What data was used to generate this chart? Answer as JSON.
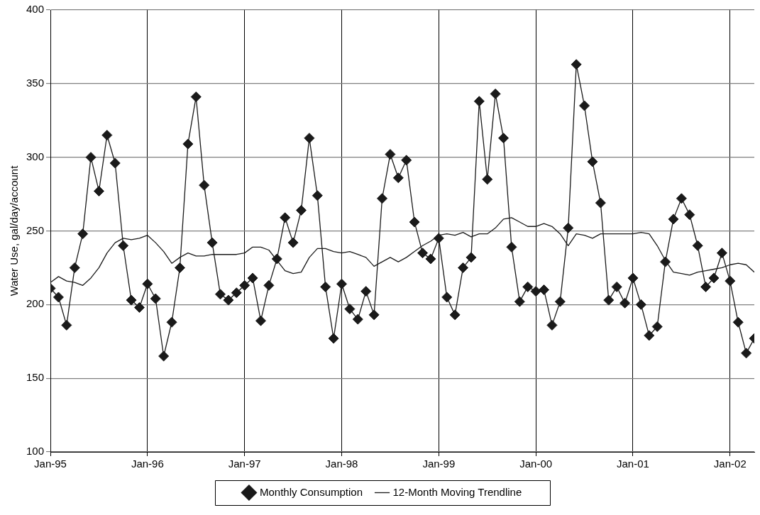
{
  "chart_data": {
    "type": "line",
    "ylabel": "Water Use, gal/day/account",
    "x": [
      "1995-01",
      "1995-02",
      "1995-03",
      "1995-04",
      "1995-05",
      "1995-06",
      "1995-07",
      "1995-08",
      "1995-09",
      "1995-10",
      "1995-11",
      "1995-12",
      "1996-01",
      "1996-02",
      "1996-03",
      "1996-04",
      "1996-05",
      "1996-06",
      "1996-07",
      "1996-08",
      "1996-09",
      "1996-10",
      "1996-11",
      "1996-12",
      "1997-01",
      "1997-02",
      "1997-03",
      "1997-04",
      "1997-05",
      "1997-06",
      "1997-07",
      "1997-08",
      "1997-09",
      "1997-10",
      "1997-11",
      "1997-12",
      "1998-01",
      "1998-02",
      "1998-03",
      "1998-04",
      "1998-05",
      "1998-06",
      "1998-07",
      "1998-08",
      "1998-09",
      "1998-10",
      "1998-11",
      "1998-12",
      "1999-01",
      "1999-02",
      "1999-03",
      "1999-04",
      "1999-05",
      "1999-06",
      "1999-07",
      "1999-08",
      "1999-09",
      "1999-10",
      "1999-11",
      "1999-12",
      "2000-01",
      "2000-02",
      "2000-03",
      "2000-04",
      "2000-05",
      "2000-06",
      "2000-07",
      "2000-08",
      "2000-09",
      "2000-10",
      "2000-11",
      "2000-12",
      "2001-01",
      "2001-02",
      "2001-03",
      "2001-04",
      "2001-05",
      "2001-06",
      "2001-07",
      "2001-08",
      "2001-09",
      "2001-10",
      "2001-11",
      "2001-12",
      "2002-01",
      "2002-02",
      "2002-03",
      "2002-04"
    ],
    "series": [
      {
        "name": "Monthly Consumption",
        "color": "#1a1a1a",
        "marker": "diamond",
        "values": [
          211,
          205,
          186,
          225,
          248,
          300,
          277,
          315,
          296,
          240,
          203,
          198,
          214,
          204,
          165,
          188,
          225,
          309,
          341,
          281,
          242,
          207,
          203,
          208,
          213,
          218,
          189,
          213,
          231,
          259,
          242,
          264,
          313,
          274,
          212,
          177,
          214,
          197,
          190,
          209,
          193,
          272,
          302,
          286,
          298,
          256,
          235,
          231,
          245,
          205,
          193,
          225,
          232,
          338,
          285,
          343,
          313,
          239,
          202,
          212,
          209,
          210,
          186,
          202,
          252,
          363,
          335,
          297,
          269,
          203,
          212,
          201,
          218,
          200,
          179,
          185,
          229,
          258,
          272,
          261,
          240,
          212,
          218,
          235,
          216,
          188,
          167,
          177
        ]
      },
      {
        "name": "12-Month Moving Trendline",
        "color": "#1a1a1a",
        "marker": "none",
        "values": [
          215,
          219,
          216,
          215,
          213,
          218,
          225,
          235,
          242,
          245,
          244,
          245,
          247,
          242,
          236,
          228,
          232,
          235,
          233,
          233,
          234,
          234,
          234,
          234,
          235,
          239,
          239,
          237,
          230,
          223,
          221,
          222,
          232,
          238,
          238,
          236,
          235,
          236,
          234,
          232,
          226,
          229,
          232,
          229,
          232,
          236,
          240,
          243,
          247,
          248,
          247,
          249,
          246,
          248,
          248,
          252,
          258,
          259,
          256,
          253,
          253,
          255,
          253,
          248,
          240,
          248,
          247,
          245,
          248,
          248,
          248,
          248,
          248,
          249,
          248,
          240,
          230,
          222,
          221,
          220,
          222,
          223,
          224,
          225,
          227,
          228,
          227,
          222
        ]
      }
    ],
    "xlim": [
      "1995-01",
      "2002-04"
    ],
    "xticks": [
      {
        "value": "1995-01",
        "label": "Jan-95"
      },
      {
        "value": "1996-01",
        "label": "Jan-96"
      },
      {
        "value": "1997-01",
        "label": "Jan-97"
      },
      {
        "value": "1998-01",
        "label": "Jan-98"
      },
      {
        "value": "1999-01",
        "label": "Jan-99"
      },
      {
        "value": "2000-01",
        "label": "Jan-00"
      },
      {
        "value": "2001-01",
        "label": "Jan-01"
      },
      {
        "value": "2002-01",
        "label": "Jan-02"
      }
    ],
    "ylim": [
      100,
      400
    ],
    "yticks": [
      100,
      150,
      200,
      250,
      300,
      350,
      400
    ],
    "grid": true,
    "legend": "bottom",
    "line_style": "solid"
  }
}
